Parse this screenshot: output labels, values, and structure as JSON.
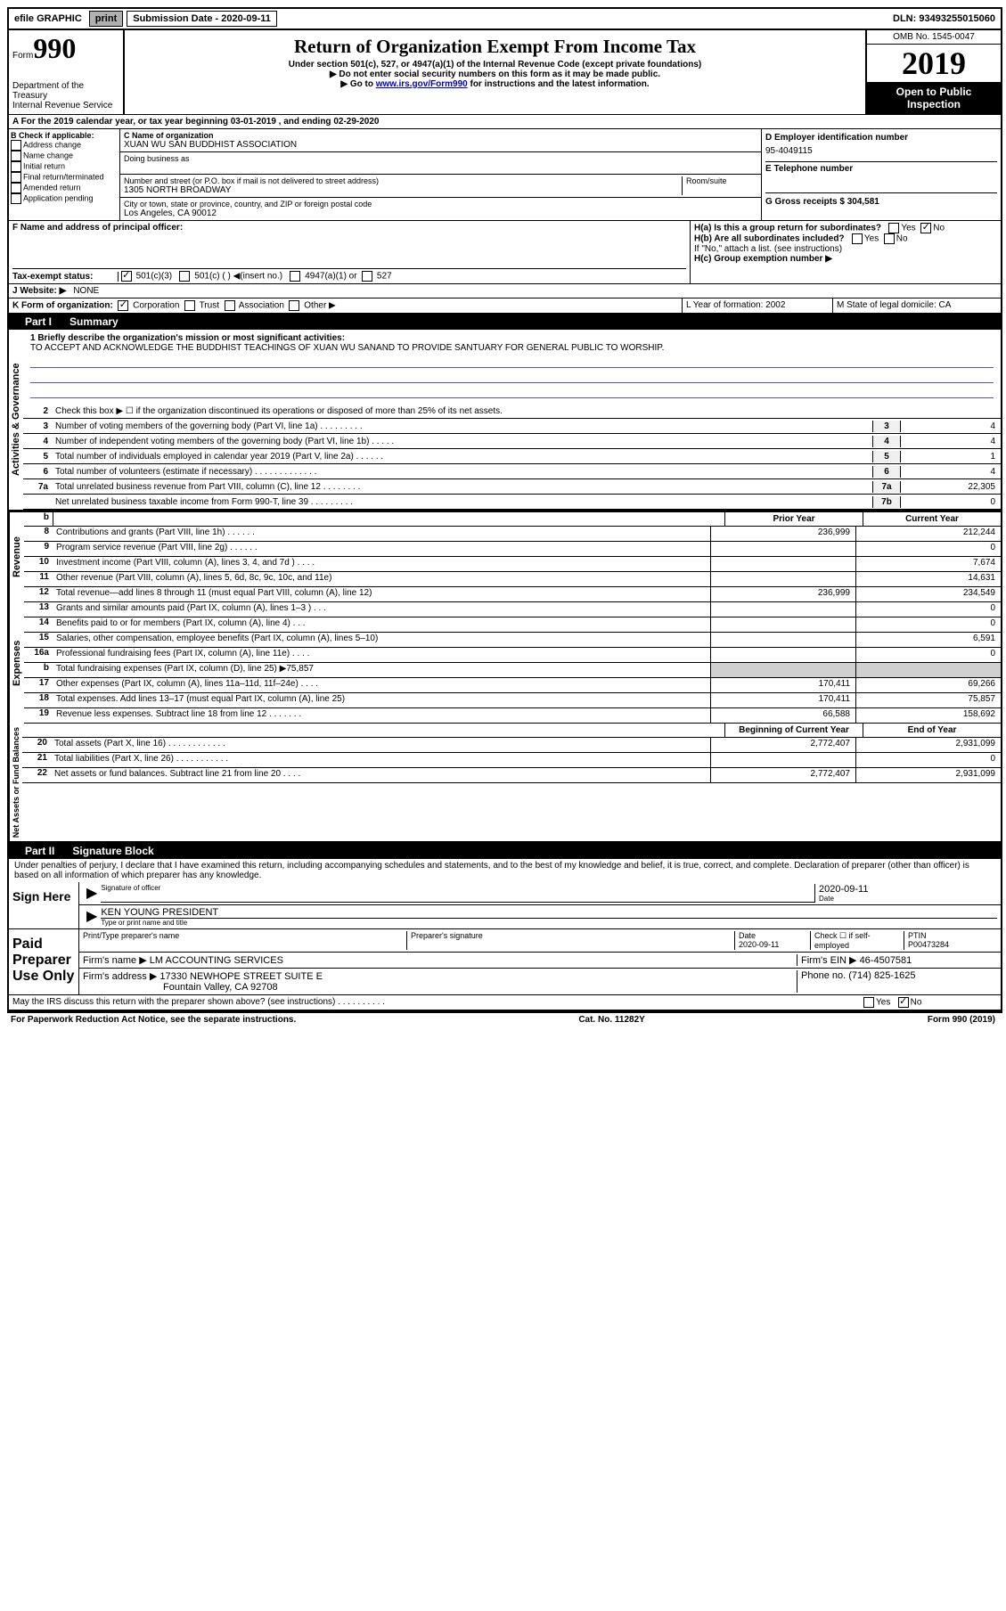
{
  "topbar": {
    "efile": "efile GRAPHIC",
    "print": "print",
    "subdate_label": "Submission Date - 2020-09-11",
    "dln_label": "DLN: 93493255015060"
  },
  "header": {
    "form_prefix": "Form",
    "form_num": "990",
    "title": "Return of Organization Exempt From Income Tax",
    "sub1": "Under section 501(c), 527, or 4947(a)(1) of the Internal Revenue Code (except private foundations)",
    "sub2": "▶ Do not enter social security numbers on this form as it may be made public.",
    "sub3": "▶ Go to ",
    "sub3_link": "www.irs.gov/Form990",
    "sub3_end": " for instructions and the latest information.",
    "dept": "Department of the Treasury",
    "irs": "Internal Revenue Service",
    "omb": "OMB No. 1545-0047",
    "year": "2019",
    "open_public": "Open to Public Inspection"
  },
  "rowA": {
    "text": "A For the 2019 calendar year, or tax year beginning 03-01-2019   , and ending 02-29-2020"
  },
  "sectionB": {
    "b_label": "B Check if applicable:",
    "addr_change": "Address change",
    "name_change": "Name change",
    "initial": "Initial return",
    "final": "Final return/terminated",
    "amended": "Amended return",
    "app_pending": "Application pending",
    "c_label": "C Name of organization",
    "org_name": "XUAN WU SAN BUDDHIST ASSOCIATION",
    "dba_label": "Doing business as",
    "street_label": "Number and street (or P.O. box if mail is not delivered to street address)",
    "room_label": "Room/suite",
    "street": "1305 NORTH BROADWAY",
    "city_label": "City or town, state or province, country, and ZIP or foreign postal code",
    "city": "Los Angeles, CA  90012",
    "d_label": "D Employer identification number",
    "ein": "95-4049115",
    "e_label": "E Telephone number",
    "g_label": "G Gross receipts $ 304,581"
  },
  "sectionF": {
    "f_label": "F  Name and address of principal officer:",
    "ha_label": "H(a)  Is this a group return for subordinates?",
    "hb_label": "H(b)  Are all subordinates included?",
    "hb_note": "If \"No,\" attach a list. (see instructions)",
    "hc_label": "H(c)  Group exemption number ▶",
    "yes": "Yes",
    "no": "No"
  },
  "sectionI": {
    "i_label": "Tax-exempt status:",
    "c3": "501(c)(3)",
    "c_blank": "501(c) (  ) ◀(insert no.)",
    "a1": "4947(a)(1) or",
    "s527": "527",
    "j_label": "J   Website: ▶",
    "website": "NONE"
  },
  "sectionK": {
    "k_label": "K Form of organization:",
    "corp": "Corporation",
    "trust": "Trust",
    "assoc": "Association",
    "other": "Other ▶",
    "l_label": "L Year of formation: 2002",
    "m_label": "M State of legal domicile: CA"
  },
  "part1": {
    "label": "Part I",
    "title": "Summary",
    "line1_label": "1 Briefly describe the organization's mission or most significant activities:",
    "mission": "TO ACCEPT AND ACKNOWLEDGE THE BUDDHIST TEACHINGS OF XUAN WU SANAND TO PROVIDE SANTUARY FOR GENERAL PUBLIC TO WORSHIP.",
    "line2": "Check this box ▶ ☐  if the organization discontinued its operations or disposed of more than 25% of its net assets.",
    "tabs": {
      "activities": "Activities & Governance",
      "revenue": "Revenue",
      "expenses": "Expenses",
      "netassets": "Net Assets or Fund Balances"
    }
  },
  "lines_ag": [
    {
      "n": "3",
      "d": "Number of voting members of the governing body (Part VI, line 1a)  .    .    .    .    .    .    .    .    .",
      "box": "3",
      "v": "4"
    },
    {
      "n": "4",
      "d": "Number of independent voting members of the governing body (Part VI, line 1b)  .    .    .    .    .",
      "box": "4",
      "v": "4"
    },
    {
      "n": "5",
      "d": "Total number of individuals employed in calendar year 2019 (Part V, line 2a)  .    .    .    .    .    .",
      "box": "5",
      "v": "1"
    },
    {
      "n": "6",
      "d": "Total number of volunteers (estimate if necessary)   .    .    .    .    .    .    .    .    .    .    .    .    .",
      "box": "6",
      "v": "4"
    },
    {
      "n": "7a",
      "d": "Total unrelated business revenue from Part VIII, column (C), line 12  .    .    .    .    .    .    .    .",
      "box": "7a",
      "v": "22,305"
    },
    {
      "n": "",
      "d": "Net unrelated business taxable income from Form 990-T, line 39   .    .    .    .    .    .    .    .    .",
      "box": "7b",
      "v": "0"
    }
  ],
  "col_headers": {
    "prior": "Prior Year",
    "current": "Current Year",
    "boy": "Beginning of Current Year",
    "eoy": "End of Year"
  },
  "lines_rev": [
    {
      "n": "8",
      "d": "Contributions and grants (Part VIII, line 1h)   .    .    .    .    .    .",
      "p": "236,999",
      "c": "212,244"
    },
    {
      "n": "9",
      "d": "Program service revenue (Part VIII, line 2g)   .    .    .    .    .    .",
      "p": "",
      "c": "0"
    },
    {
      "n": "10",
      "d": "Investment income (Part VIII, column (A), lines 3, 4, and 7d )   .    .    .    .",
      "p": "",
      "c": "7,674"
    },
    {
      "n": "11",
      "d": "Other revenue (Part VIII, column (A), lines 5, 6d, 8c, 9c, 10c, and 11e)",
      "p": "",
      "c": "14,631"
    },
    {
      "n": "12",
      "d": "Total revenue—add lines 8 through 11 (must equal Part VIII, column (A), line 12)",
      "p": "236,999",
      "c": "234,549"
    }
  ],
  "lines_exp": [
    {
      "n": "13",
      "d": "Grants and similar amounts paid (Part IX, column (A), lines 1–3 )  .    .    .",
      "p": "",
      "c": "0"
    },
    {
      "n": "14",
      "d": "Benefits paid to or for members (Part IX, column (A), line 4)  .    .    .",
      "p": "",
      "c": "0"
    },
    {
      "n": "15",
      "d": "Salaries, other compensation, employee benefits (Part IX, column (A), lines 5–10)",
      "p": "",
      "c": "6,591"
    },
    {
      "n": "16a",
      "d": "Professional fundraising fees (Part IX, column (A), line 11e)  .    .    .    .",
      "p": "",
      "c": "0"
    },
    {
      "n": "b",
      "d": "Total fundraising expenses (Part IX, column (D), line 25) ▶75,857",
      "p": "grey",
      "c": "grey"
    },
    {
      "n": "17",
      "d": "Other expenses (Part IX, column (A), lines 11a–11d, 11f–24e)   .    .    .    .",
      "p": "170,411",
      "c": "69,266"
    },
    {
      "n": "18",
      "d": "Total expenses. Add lines 13–17 (must equal Part IX, column (A), line 25)",
      "p": "170,411",
      "c": "75,857"
    },
    {
      "n": "19",
      "d": "Revenue less expenses. Subtract line 18 from line 12 .    .    .    .    .    .    .",
      "p": "66,588",
      "c": "158,692"
    }
  ],
  "lines_na": [
    {
      "n": "20",
      "d": "Total assets (Part X, line 16)  .    .    .    .    .    .    .    .    .    .    .    .",
      "p": "2,772,407",
      "c": "2,931,099"
    },
    {
      "n": "21",
      "d": "Total liabilities (Part X, line 26)   .    .    .    .    .    .    .    .    .    .    .",
      "p": "",
      "c": "0"
    },
    {
      "n": "22",
      "d": "Net assets or fund balances. Subtract line 21 from line 20   .    .    .    .",
      "p": "2,772,407",
      "c": "2,931,099"
    }
  ],
  "part2": {
    "label": "Part II",
    "title": "Signature Block",
    "decl": "Under penalties of perjury, I declare that I have examined this return, including accompanying schedules and statements, and to the best of my knowledge and belief, it is true, correct, and complete. Declaration of preparer (other than officer) is based on all information of which preparer has any knowledge."
  },
  "sign": {
    "here": "Sign Here",
    "sig_officer": "Signature of officer",
    "date": "Date",
    "date_val": "2020-09-11",
    "name": "KEN YOUNG  PRESIDENT",
    "name_label": "Type or print name and title"
  },
  "paid": {
    "label": "Paid Preparer Use Only",
    "print_name": "Print/Type preparer's name",
    "prep_sig": "Preparer's signature",
    "date": "Date",
    "date_val": "2020-09-11",
    "check_label": "Check ☐ if self-employed",
    "ptin_label": "PTIN",
    "ptin": "P00473284",
    "firm_name_label": "Firm's name    ▶",
    "firm_name": "LM ACCOUNTING SERVICES",
    "firm_ein_label": "Firm's EIN ▶",
    "firm_ein": "46-4507581",
    "firm_addr_label": "Firm's address ▶",
    "firm_addr1": "17330 NEWHOPE STREET SUITE E",
    "firm_addr2": "Fountain Valley, CA  92708",
    "phone_label": "Phone no.",
    "phone": "(714) 825-1625",
    "irs_discuss": "May the IRS discuss this return with the preparer shown above? (see instructions)   .    .    .    .    .    .    .    .    .    ."
  },
  "footer": {
    "left": "For Paperwork Reduction Act Notice, see the separate instructions.",
    "mid": "Cat. No. 11282Y",
    "right": "Form 990 (2019)"
  }
}
